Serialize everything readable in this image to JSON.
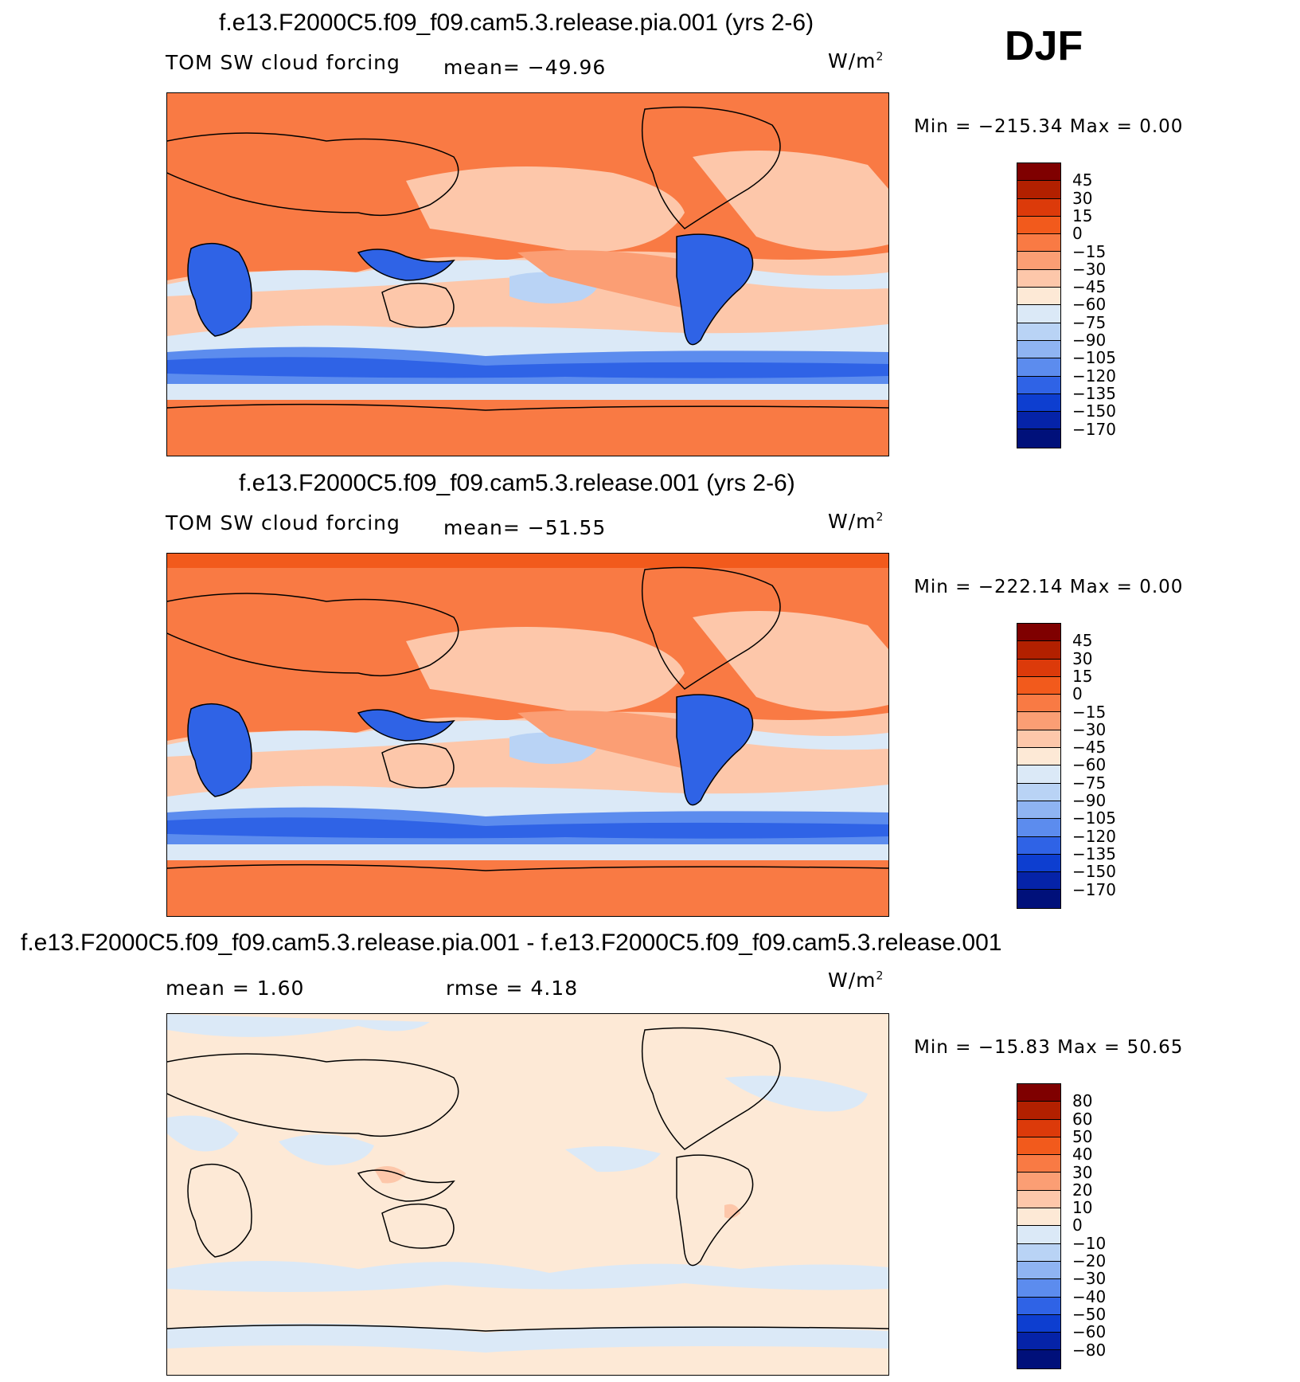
{
  "season": "DJF",
  "panels": [
    {
      "title": "f.e13.F2000C5.f09_f09.cam5.3.release.pia.001 (yrs 2-6)",
      "left_label": "TOM SW cloud forcing",
      "stat1": "mean= −49.96",
      "stat2": "",
      "units": "W/m",
      "units_sup": "2",
      "minmax": "Min = −215.34 Max =    0.00",
      "colorbar_labels": [
        "45",
        "30",
        "15",
        "0",
        "−15",
        "−30",
        "−45",
        "−60",
        "−75",
        "−90",
        "−105",
        "−120",
        "−135",
        "−150",
        "−170"
      ]
    },
    {
      "title": "f.e13.F2000C5.f09_f09.cam5.3.release.001 (yrs 2-6)",
      "left_label": "TOM SW cloud forcing",
      "stat1": "mean= −51.55",
      "stat2": "",
      "units": "W/m",
      "units_sup": "2",
      "minmax": "Min = −222.14 Max =    0.00",
      "colorbar_labels": [
        "45",
        "30",
        "15",
        "0",
        "−15",
        "−30",
        "−45",
        "−60",
        "−75",
        "−90",
        "−105",
        "−120",
        "−135",
        "−150",
        "−170"
      ]
    },
    {
      "title": "f.e13.F2000C5.f09_f09.cam5.3.release.pia.001 - f.e13.F2000C5.f09_f09.cam5.3.release.001",
      "left_label": "mean =    1.60",
      "stat1": "rmse =    4.18",
      "stat2": "",
      "units": "W/m",
      "units_sup": "2",
      "minmax": "Min = −15.83 Max =  50.65",
      "colorbar_labels": [
        "80",
        "60",
        "50",
        "40",
        "30",
        "20",
        "10",
        "0",
        "−10",
        "−20",
        "−30",
        "−40",
        "−50",
        "−60",
        "−80"
      ]
    }
  ],
  "palette": [
    "#7f0000",
    "#b22000",
    "#dc3a0a",
    "#f25a1c",
    "#f97a44",
    "#fb9e74",
    "#fdc7aa",
    "#fde9d6",
    "#dbe9f7",
    "#b9d3f5",
    "#8fb4f2",
    "#5c8cee",
    "#2f63e6",
    "#0d3ed0",
    "#0523a8",
    "#00107a"
  ]
}
